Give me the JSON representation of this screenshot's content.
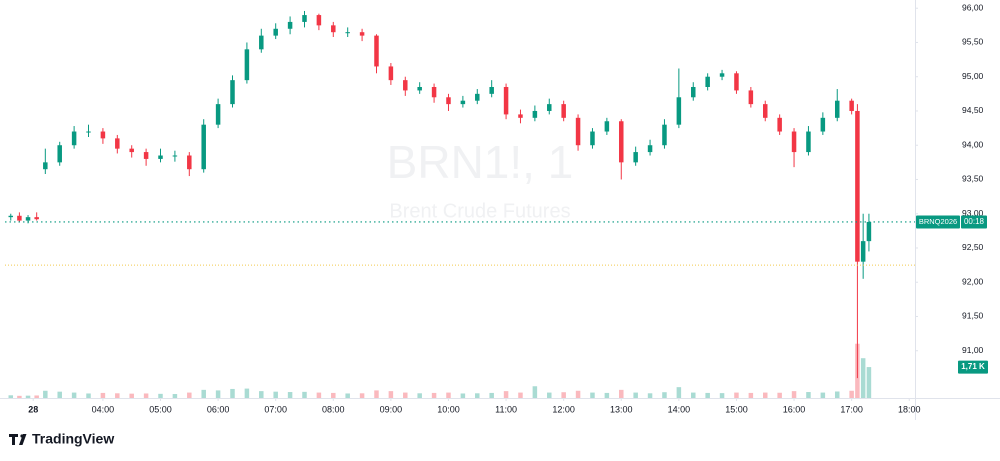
{
  "chart_data": {
    "type": "candlestick",
    "watermark_title": "BRN1!, 1",
    "watermark_subtitle": "Brent Crude Futures",
    "symbol_label": "BRNQ2026",
    "countdown_label": "00:18",
    "brand": "TradingView",
    "up_color": "#089981",
    "down_color": "#f23645",
    "last_price": 92.88,
    "prev_close": 92.25,
    "volume_label": {
      "value": 1710,
      "label": "1,71 K"
    },
    "x": [
      2.4,
      2.55,
      2.7,
      2.85,
      3,
      3.25,
      3.5,
      3.75,
      4,
      4.25,
      4.5,
      4.75,
      5,
      5.25,
      5.5,
      5.75,
      6,
      6.25,
      6.5,
      6.75,
      7,
      7.25,
      7.5,
      7.75,
      8,
      8.25,
      8.5,
      8.75,
      9,
      9.25,
      9.5,
      9.75,
      10,
      10.25,
      10.5,
      10.75,
      11,
      11.25,
      11.5,
      11.75,
      12,
      12.25,
      12.5,
      12.75,
      13,
      13.25,
      13.5,
      13.75,
      14,
      14.25,
      14.5,
      14.75,
      15,
      15.25,
      15.5,
      15.75,
      16,
      16.25,
      16.5,
      16.75,
      17,
      17.1,
      17.2,
      17.3
    ],
    "open": [
      92.95,
      92.97,
      92.9,
      92.95,
      93.65,
      93.75,
      94.0,
      94.2,
      94.2,
      94.1,
      93.95,
      93.9,
      93.8,
      93.85,
      93.85,
      93.65,
      94.3,
      94.6,
      94.95,
      95.4,
      95.6,
      95.7,
      95.8,
      95.9,
      95.75,
      95.65,
      95.65,
      95.6,
      95.15,
      94.95,
      94.8,
      94.85,
      94.7,
      94.6,
      94.65,
      94.75,
      94.85,
      94.45,
      94.4,
      94.5,
      94.6,
      94.4,
      94.0,
      94.2,
      94.35,
      93.75,
      93.9,
      94.0,
      94.3,
      94.7,
      94.85,
      95.0,
      95.05,
      94.8,
      94.6,
      94.4,
      94.2,
      93.9,
      94.2,
      94.4,
      94.65,
      94.5,
      92.3,
      92.6
    ],
    "high": [
      93.0,
      93.02,
      92.98,
      93.02,
      93.95,
      94.05,
      94.28,
      94.3,
      94.25,
      94.15,
      94.0,
      93.95,
      93.95,
      93.92,
      93.9,
      94.38,
      94.68,
      95.02,
      95.5,
      95.7,
      95.78,
      95.88,
      95.96,
      95.92,
      95.8,
      95.72,
      95.7,
      95.62,
      95.2,
      95.0,
      94.92,
      94.9,
      94.75,
      94.72,
      94.82,
      94.95,
      94.9,
      94.52,
      94.58,
      94.68,
      94.65,
      94.45,
      94.25,
      94.4,
      94.38,
      93.98,
      94.08,
      94.38,
      95.12,
      94.92,
      95.05,
      95.1,
      95.08,
      94.85,
      94.65,
      94.45,
      94.25,
      94.28,
      94.48,
      94.82,
      94.68,
      94.6,
      93.0,
      93.0
    ],
    "low": [
      92.9,
      92.88,
      92.86,
      92.9,
      93.58,
      93.7,
      93.95,
      94.12,
      94.02,
      93.88,
      93.82,
      93.7,
      93.75,
      93.76,
      93.55,
      93.6,
      94.25,
      94.55,
      94.9,
      95.35,
      95.55,
      95.62,
      95.72,
      95.68,
      95.58,
      95.58,
      95.52,
      95.05,
      94.88,
      94.72,
      94.75,
      94.62,
      94.5,
      94.55,
      94.6,
      94.7,
      94.38,
      94.32,
      94.35,
      94.45,
      94.35,
      93.92,
      93.95,
      94.15,
      93.5,
      93.7,
      93.85,
      93.95,
      94.25,
      94.65,
      94.8,
      94.95,
      94.75,
      94.55,
      94.35,
      94.15,
      93.68,
      93.85,
      94.15,
      94.35,
      94.45,
      90.6,
      92.05,
      92.45
    ],
    "close": [
      92.97,
      92.9,
      92.95,
      92.92,
      93.75,
      94.0,
      94.2,
      94.2,
      94.1,
      93.95,
      93.9,
      93.8,
      93.85,
      93.85,
      93.65,
      94.3,
      94.6,
      94.95,
      95.4,
      95.6,
      95.7,
      95.8,
      95.9,
      95.75,
      95.65,
      95.65,
      95.6,
      95.15,
      94.95,
      94.8,
      94.85,
      94.7,
      94.6,
      94.65,
      94.75,
      94.85,
      94.45,
      94.4,
      94.5,
      94.6,
      94.4,
      94.0,
      94.2,
      94.35,
      93.75,
      93.9,
      94.0,
      94.3,
      94.7,
      94.85,
      95.0,
      95.05,
      94.8,
      94.6,
      94.4,
      94.2,
      93.9,
      94.2,
      94.4,
      94.65,
      94.5,
      92.3,
      92.6,
      92.88
    ],
    "volume": [
      150,
      120,
      130,
      140,
      400,
      350,
      300,
      250,
      280,
      260,
      240,
      250,
      230,
      220,
      300,
      450,
      420,
      500,
      520,
      380,
      350,
      330,
      340,
      300,
      280,
      250,
      260,
      420,
      380,
      300,
      260,
      280,
      300,
      250,
      260,
      280,
      380,
      300,
      650,
      300,
      320,
      400,
      300,
      280,
      450,
      300,
      260,
      320,
      600,
      300,
      280,
      270,
      300,
      280,
      300,
      290,
      380,
      330,
      300,
      360,
      400,
      3000,
      2200,
      1710
    ],
    "xlim": [
      2.3,
      18.1
    ],
    "ylim": [
      90.31,
      96.12
    ],
    "y2lim": [
      0,
      22000
    ],
    "xticks": [
      {
        "value": 2.79,
        "label": "28"
      },
      {
        "value": 4,
        "label": "04:00"
      },
      {
        "value": 5,
        "label": "05:00"
      },
      {
        "value": 6,
        "label": "06:00"
      },
      {
        "value": 7,
        "label": "07:00"
      },
      {
        "value": 8,
        "label": "08:00"
      },
      {
        "value": 9,
        "label": "09:00"
      },
      {
        "value": 10,
        "label": "10:00"
      },
      {
        "value": 11,
        "label": "11:00"
      },
      {
        "value": 12,
        "label": "12:00"
      },
      {
        "value": 13,
        "label": "13:00"
      },
      {
        "value": 14,
        "label": "14:00"
      },
      {
        "value": 15,
        "label": "15:00"
      },
      {
        "value": 16,
        "label": "16:00"
      },
      {
        "value": 17,
        "label": "17:00"
      },
      {
        "value": 18,
        "label": "18:00"
      }
    ],
    "yticks": [
      {
        "value": 91,
        "label": "91,00"
      },
      {
        "value": 91.5,
        "label": "91,50"
      },
      {
        "value": 92,
        "label": "92,00"
      },
      {
        "value": 92.5,
        "label": "92,50"
      },
      {
        "value": 93,
        "label": "93,00"
      },
      {
        "value": 93.5,
        "label": "93,50"
      },
      {
        "value": 94,
        "label": "94,00"
      },
      {
        "value": 94.5,
        "label": "94,50"
      },
      {
        "value": 95,
        "label": "95,00"
      },
      {
        "value": 95.5,
        "label": "95,50"
      },
      {
        "value": 96,
        "label": "96,00"
      }
    ]
  }
}
